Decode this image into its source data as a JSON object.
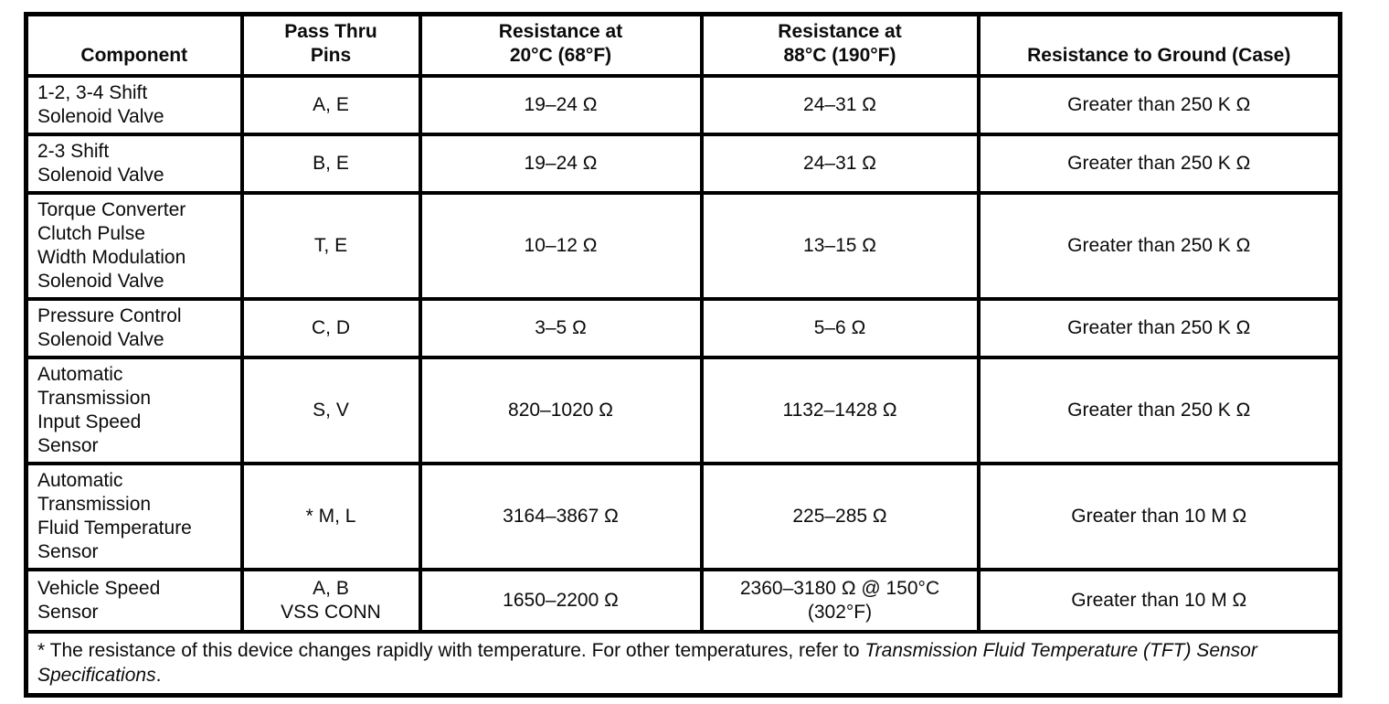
{
  "page": {
    "background_color": "#ffffff",
    "ink_color": "#0b0b0b"
  },
  "table": {
    "columns": [
      "Component",
      "Pass Thru\nPins",
      "Resistance at\n20°C (68°F)",
      "Resistance at\n88°C (190°F)",
      "Resistance to Ground (Case)"
    ],
    "rows": [
      {
        "cells": [
          "1-2, 3-4 Shift\nSolenoid Valve",
          "A, E",
          "19–24 Ω",
          "24–31 Ω",
          "Greater than 250 K Ω"
        ]
      },
      {
        "cells": [
          "2-3 Shift\nSolenoid Valve",
          "B, E",
          "19–24 Ω",
          "24–31 Ω",
          "Greater than 250 K Ω"
        ]
      },
      {
        "cells": [
          "Torque Converter\nClutch Pulse\nWidth Modulation\nSolenoid Valve",
          "T, E",
          "10–12 Ω",
          "13–15 Ω",
          "Greater than 250 K Ω"
        ]
      },
      {
        "cells": [
          "Pressure Control\nSolenoid Valve",
          "C, D",
          "3–5 Ω",
          "5–6 Ω",
          "Greater than 250 K Ω"
        ]
      },
      {
        "cells": [
          "Automatic\nTransmission\nInput Speed\nSensor",
          "S, V",
          "820–1020 Ω",
          "1132–1428 Ω",
          "Greater than 250 K Ω"
        ]
      },
      {
        "cells": [
          "Automatic\nTransmission\nFluid Temperature\nSensor",
          "* M, L",
          "3164–3867 Ω",
          "225–285 Ω",
          "Greater than 10 M Ω"
        ]
      },
      {
        "cells": [
          "Vehicle Speed\nSensor",
          "A, B\nVSS CONN",
          "1650–2200 Ω",
          "2360–3180 Ω @ 150°C\n(302°F)",
          "Greater than 10 M Ω"
        ]
      }
    ]
  },
  "footnote": {
    "prefix": "* The resistance of this device changes rapidly with temperature. For other temperatures, refer to ",
    "italic": "Transmission Fluid Temperature (TFT) Sensor Specifications",
    "suffix": "."
  }
}
